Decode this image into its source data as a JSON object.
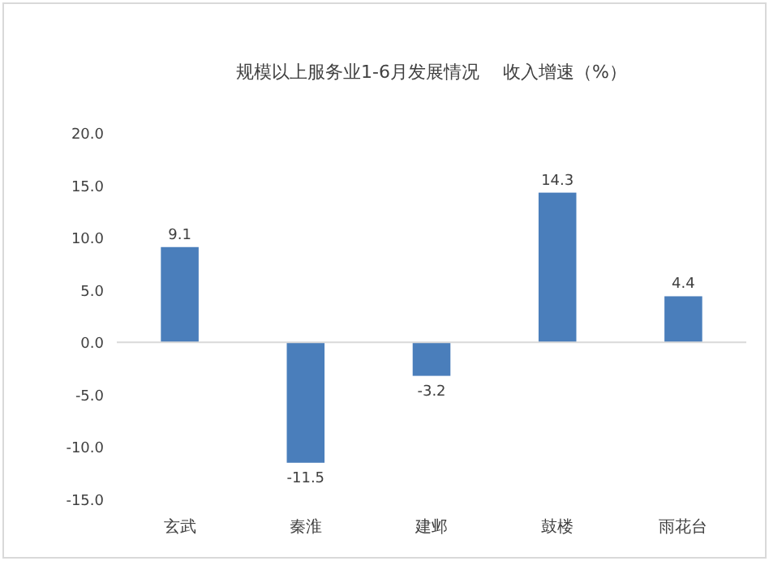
{
  "chart_data": {
    "type": "bar",
    "title": "规模以上服务业1-6月发展情况　 收入增速（%）",
    "categories": [
      "玄武",
      "秦淮",
      "建邺",
      "鼓楼",
      "雨花台"
    ],
    "values": [
      9.1,
      -11.5,
      -3.2,
      14.3,
      4.4
    ],
    "value_labels": [
      "9.1",
      "-11.5",
      "-3.2",
      "14.3",
      "4.4"
    ],
    "color": "#4a7ebb",
    "ylim": [
      -15,
      20
    ],
    "yticks": [
      {
        "value": -15,
        "label": "-15.0"
      },
      {
        "value": -10,
        "label": "-10.0"
      },
      {
        "value": -5,
        "label": "-5.0"
      },
      {
        "value": 0,
        "label": "0.0"
      },
      {
        "value": 5,
        "label": "5.0"
      },
      {
        "value": 10,
        "label": "10.0"
      },
      {
        "value": 15,
        "label": "15.0"
      },
      {
        "value": 20,
        "label": "20.0"
      }
    ]
  }
}
